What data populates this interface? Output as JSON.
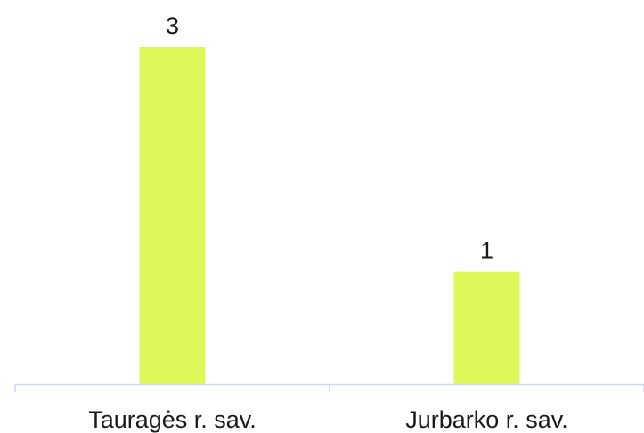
{
  "chart_data": {
    "type": "bar",
    "categories": [
      "Tauragės r. sav.",
      "Jurbarko r. sav."
    ],
    "values": [
      3,
      1
    ],
    "title": "",
    "xlabel": "",
    "ylabel": "",
    "ylim": [
      0,
      3
    ],
    "grid": false,
    "legend": "none",
    "data_labels": true,
    "colors": {
      "bar": "#e0f75a",
      "axis": "#c9d9ee",
      "text": "#1a1a1a"
    }
  }
}
